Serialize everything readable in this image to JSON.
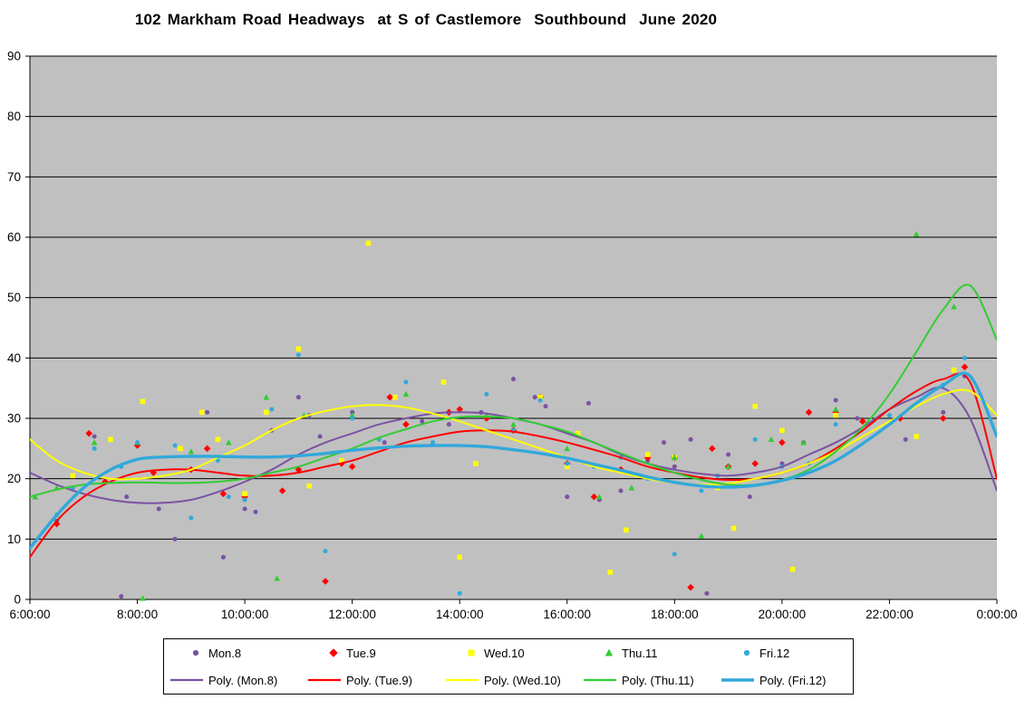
{
  "title": "102 Markham Road Headways  at S of Castlemore  Southbound  June 2020",
  "chart_data": {
    "type": "scatter",
    "title": "102 Markham Road Headways  at S of Castlemore  Southbound  June 2020",
    "plot_bg": "#C0C0C0",
    "grid_color": "#000000",
    "x_axis": {
      "range_hours": [
        6,
        24
      ],
      "tick_hours": [
        6,
        8,
        10,
        12,
        14,
        16,
        18,
        20,
        22,
        24
      ],
      "tick_labels": [
        "6:00:00",
        "8:00:00",
        "10:00:00",
        "12:00:00",
        "14:00:00",
        "16:00:00",
        "18:00:00",
        "20:00:00",
        "22:00:00",
        "0:00:00"
      ]
    },
    "y_axis": {
      "min": 0,
      "max": 90,
      "step": 10,
      "tick_labels": [
        "0",
        "10",
        "20",
        "30",
        "40",
        "50",
        "60",
        "70",
        "80",
        "90"
      ]
    },
    "series": [
      {
        "name": "Mon.8",
        "color": "#7A52A3",
        "marker": "circle",
        "points": [
          [
            6.5,
            13
          ],
          [
            7.2,
            27
          ],
          [
            7.7,
            0.5
          ],
          [
            7.8,
            17
          ],
          [
            8.4,
            15
          ],
          [
            8.7,
            10
          ],
          [
            9.3,
            31
          ],
          [
            9.6,
            7
          ],
          [
            10.0,
            15
          ],
          [
            10.2,
            14.5
          ],
          [
            10.5,
            28
          ],
          [
            11.0,
            33.5
          ],
          [
            11.2,
            30.5
          ],
          [
            11.4,
            27
          ],
          [
            12.0,
            31
          ],
          [
            12.6,
            26
          ],
          [
            13.3,
            29.5
          ],
          [
            13.8,
            29
          ],
          [
            14.4,
            31
          ],
          [
            15.0,
            36.5
          ],
          [
            15.4,
            33.5
          ],
          [
            15.6,
            32
          ],
          [
            16.0,
            17
          ],
          [
            16.4,
            32.5
          ],
          [
            16.6,
            16.5
          ],
          [
            17.0,
            18
          ],
          [
            17.5,
            23
          ],
          [
            17.8,
            26
          ],
          [
            18.0,
            22
          ],
          [
            18.3,
            26.5
          ],
          [
            18.6,
            1
          ],
          [
            19.0,
            24
          ],
          [
            19.4,
            17
          ],
          [
            20.0,
            22.5
          ],
          [
            20.4,
            26
          ],
          [
            21.0,
            33
          ],
          [
            21.4,
            30
          ],
          [
            22.3,
            26.5
          ],
          [
            23.0,
            31
          ],
          [
            23.4,
            37
          ]
        ]
      },
      {
        "name": "Tue.9",
        "color": "#FF0000",
        "marker": "diamond",
        "points": [
          [
            6.5,
            12.5
          ],
          [
            7.1,
            27.5
          ],
          [
            7.4,
            19.5
          ],
          [
            8.0,
            25.5
          ],
          [
            8.3,
            21
          ],
          [
            9.0,
            21.5
          ],
          [
            9.3,
            25
          ],
          [
            9.6,
            17.5
          ],
          [
            10.0,
            17
          ],
          [
            10.7,
            18
          ],
          [
            11.0,
            21.5
          ],
          [
            11.5,
            3
          ],
          [
            11.8,
            22.5
          ],
          [
            12.0,
            22
          ],
          [
            12.7,
            33.5
          ],
          [
            13.0,
            29
          ],
          [
            13.8,
            31
          ],
          [
            14.0,
            31.5
          ],
          [
            14.5,
            30
          ],
          [
            15.0,
            28
          ],
          [
            15.5,
            33.5
          ],
          [
            16.0,
            22.5
          ],
          [
            16.5,
            17
          ],
          [
            17.0,
            21.5
          ],
          [
            17.5,
            23.5
          ],
          [
            18.0,
            23.5
          ],
          [
            18.3,
            2
          ],
          [
            18.7,
            25
          ],
          [
            19.0,
            22
          ],
          [
            19.5,
            22.5
          ],
          [
            20.0,
            26
          ],
          [
            20.5,
            31
          ],
          [
            21.0,
            31
          ],
          [
            21.5,
            29.5
          ],
          [
            22.2,
            30
          ],
          [
            23.0,
            30
          ],
          [
            23.4,
            38.5
          ]
        ]
      },
      {
        "name": "Wed.10",
        "color": "#FFFF00",
        "marker": "square",
        "points": [
          [
            6.8,
            20.5
          ],
          [
            7.5,
            26.5
          ],
          [
            8.1,
            32.8
          ],
          [
            8.8,
            25
          ],
          [
            9.2,
            31
          ],
          [
            9.5,
            26.5
          ],
          [
            10.0,
            17.5
          ],
          [
            10.4,
            31
          ],
          [
            11.0,
            41.5
          ],
          [
            11.2,
            18.8
          ],
          [
            11.8,
            23
          ],
          [
            12.3,
            59
          ],
          [
            12.8,
            33.5
          ],
          [
            13.7,
            36
          ],
          [
            14.0,
            7
          ],
          [
            14.3,
            22.5
          ],
          [
            15.5,
            33.5
          ],
          [
            16.0,
            22
          ],
          [
            16.2,
            27.5
          ],
          [
            16.8,
            4.5
          ],
          [
            17.1,
            11.5
          ],
          [
            17.5,
            24
          ],
          [
            18.0,
            23.5
          ],
          [
            18.8,
            18.5
          ],
          [
            19.1,
            11.8
          ],
          [
            19.5,
            32
          ],
          [
            20.0,
            28
          ],
          [
            20.2,
            5
          ],
          [
            21.0,
            30.5
          ],
          [
            22.5,
            27
          ],
          [
            23.2,
            38
          ]
        ]
      },
      {
        "name": "Thu.11",
        "color": "#33CC33",
        "marker": "triangle",
        "points": [
          [
            6.1,
            17
          ],
          [
            6.5,
            18.5
          ],
          [
            7.2,
            26
          ],
          [
            8.0,
            26
          ],
          [
            8.1,
            0.2
          ],
          [
            9.0,
            24.5
          ],
          [
            9.7,
            26
          ],
          [
            10.4,
            33.5
          ],
          [
            10.6,
            3.5
          ],
          [
            11.1,
            30.5
          ],
          [
            12.0,
            30.5
          ],
          [
            13.0,
            34
          ],
          [
            14.5,
            30.5
          ],
          [
            15.0,
            29
          ],
          [
            16.0,
            25
          ],
          [
            16.6,
            17
          ],
          [
            17.2,
            18.5
          ],
          [
            18.0,
            23.5
          ],
          [
            18.5,
            10.5
          ],
          [
            19.0,
            22
          ],
          [
            19.8,
            26.5
          ],
          [
            20.4,
            26
          ],
          [
            21.0,
            31.5
          ],
          [
            22.5,
            60.5
          ],
          [
            23.2,
            48.5
          ]
        ]
      },
      {
        "name": "Fri.12",
        "color": "#31A8DB",
        "marker": "circle",
        "points": [
          [
            6.5,
            14
          ],
          [
            6.8,
            18.5
          ],
          [
            7.2,
            25
          ],
          [
            7.7,
            22
          ],
          [
            8.0,
            26
          ],
          [
            8.7,
            25.5
          ],
          [
            9.0,
            13.5
          ],
          [
            9.5,
            23
          ],
          [
            9.7,
            17
          ],
          [
            10.0,
            16.5
          ],
          [
            10.5,
            31.5
          ],
          [
            11.0,
            40.5
          ],
          [
            11.5,
            8
          ],
          [
            12.0,
            30
          ],
          [
            12.5,
            26.5
          ],
          [
            13.0,
            36
          ],
          [
            13.5,
            26
          ],
          [
            14.0,
            1
          ],
          [
            14.5,
            34
          ],
          [
            15.0,
            28
          ],
          [
            15.5,
            33
          ],
          [
            16.0,
            22.5
          ],
          [
            16.5,
            22
          ],
          [
            17.0,
            23.5
          ],
          [
            17.5,
            20
          ],
          [
            18.0,
            7.5
          ],
          [
            18.5,
            18
          ],
          [
            18.8,
            20.5
          ],
          [
            19.5,
            26.5
          ],
          [
            20.0,
            22
          ],
          [
            20.5,
            22.5
          ],
          [
            21.0,
            29
          ],
          [
            22.0,
            30.5
          ],
          [
            23.0,
            35.5
          ],
          [
            23.4,
            40
          ]
        ]
      }
    ],
    "trendlines": [
      {
        "name": "Poly. (Mon.8)",
        "color": "#7A52A3",
        "width": 2,
        "x_start": 6,
        "x_step": 0.5,
        "values": [
          21,
          19,
          17.5,
          16.5,
          16,
          16,
          16.5,
          17.8,
          19.5,
          21.5,
          24,
          26,
          27.5,
          29,
          30,
          30.8,
          31,
          30.8,
          30,
          29,
          27.5,
          26,
          24,
          22.5,
          21.5,
          20.8,
          20.5,
          21,
          22,
          24,
          26,
          28.5,
          31.5,
          33.5,
          35,
          30,
          18
        ]
      },
      {
        "name": "Poly. (Tue.9)",
        "color": "#FF0000",
        "width": 2,
        "x_start": 6,
        "x_step": 0.5,
        "values": [
          7,
          13,
          17,
          19.5,
          21,
          21.5,
          21.5,
          21,
          20.5,
          20.5,
          21,
          22,
          23,
          24.5,
          26,
          27,
          27.8,
          28,
          27.8,
          27,
          26,
          24.8,
          23.5,
          22,
          21,
          20.2,
          19.8,
          20,
          21,
          22.5,
          25,
          28,
          31.5,
          34.5,
          36.5,
          36,
          20
        ]
      },
      {
        "name": "Poly. (Wed.10)",
        "color": "#FFFF00",
        "width": 2,
        "x_start": 6,
        "x_step": 0.5,
        "values": [
          26.5,
          23,
          21,
          20,
          20,
          20.5,
          21.5,
          23.5,
          25.5,
          28,
          30,
          31.2,
          32,
          32.2,
          31.8,
          30.8,
          29.5,
          28,
          26.5,
          25,
          23.5,
          22,
          21,
          20,
          19.3,
          19,
          19.2,
          20,
          21,
          22.5,
          24.5,
          27,
          29.5,
          32,
          34,
          34.5,
          30.5
        ]
      },
      {
        "name": "Poly. (Thu.11)",
        "color": "#33CC33",
        "width": 2,
        "x_start": 6,
        "x_step": 0.5,
        "values": [
          17,
          18.2,
          19,
          19.3,
          19.4,
          19.3,
          19.3,
          19.5,
          20,
          21,
          22,
          23.5,
          25,
          26.8,
          28.2,
          29.5,
          30.2,
          30.3,
          30,
          29,
          27.8,
          26,
          24.2,
          22.5,
          21,
          19.8,
          19,
          19,
          19.8,
          21.5,
          24.5,
          28.5,
          34,
          41,
          48,
          52,
          43
        ]
      },
      {
        "name": "Poly. (Fri.12)",
        "color": "#31A8DB",
        "width": 3.4,
        "x_start": 6,
        "x_step": 0.5,
        "values": [
          8.5,
          14,
          18.5,
          21.5,
          23.2,
          23.6,
          23.7,
          23.7,
          23.6,
          23.6,
          23.8,
          24.2,
          24.7,
          25.1,
          25.4,
          25.5,
          25.5,
          25.3,
          24.8,
          24.2,
          23.4,
          22.4,
          21.4,
          20.3,
          19.4,
          18.8,
          18.6,
          18.9,
          19.7,
          21,
          23,
          25.8,
          29,
          32.5,
          35.5,
          37,
          27
        ]
      }
    ],
    "legend_position": "bottom"
  }
}
